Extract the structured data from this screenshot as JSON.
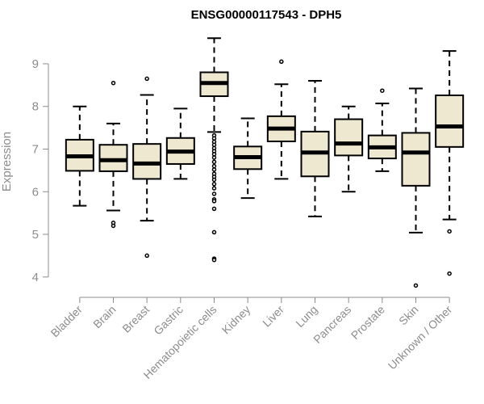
{
  "chart_data": {
    "type": "boxplot",
    "title": "ENSG00000117543 - DPH5",
    "xlabel": "",
    "ylabel": "Expression",
    "ylim": [
      3.75,
      9.7
    ],
    "yticks": [
      4,
      5,
      6,
      7,
      8,
      9
    ],
    "box_fill": "#efe8d0",
    "categories": [
      "Bladder",
      "Brain",
      "Breast",
      "Gastric",
      "Hematopoietic cells",
      "Kidney",
      "Liver",
      "Lung",
      "Pancreas",
      "Prostate",
      "Skin",
      "Unknown / Other"
    ],
    "boxes": [
      {
        "whisker_low": 5.67,
        "q1": 6.49,
        "median": 6.83,
        "q3": 7.22,
        "whisker_high": 8.0,
        "outliers": []
      },
      {
        "whisker_low": 5.56,
        "q1": 6.48,
        "median": 6.74,
        "q3": 7.1,
        "whisker_high": 7.6,
        "outliers": [
          8.55,
          5.27,
          5.2
        ]
      },
      {
        "whisker_low": 5.32,
        "q1": 6.3,
        "median": 6.66,
        "q3": 7.12,
        "whisker_high": 8.27,
        "outliers": [
          8.65,
          4.5
        ]
      },
      {
        "whisker_low": 6.3,
        "q1": 6.65,
        "median": 6.94,
        "q3": 7.26,
        "whisker_high": 7.95,
        "outliers": []
      },
      {
        "whisker_low": 7.4,
        "q1": 8.24,
        "median": 8.55,
        "q3": 8.8,
        "whisker_high": 9.6,
        "outliers": [
          7.32,
          7.25,
          7.17,
          7.1,
          7.02,
          6.95,
          6.88,
          6.8,
          6.7,
          6.6,
          6.52,
          6.42,
          6.35,
          6.28,
          6.18,
          6.08,
          5.95,
          5.82,
          5.78,
          5.6,
          5.05,
          4.43,
          4.4
        ]
      },
      {
        "whisker_low": 5.85,
        "q1": 6.53,
        "median": 6.81,
        "q3": 7.06,
        "whisker_high": 7.72,
        "outliers": []
      },
      {
        "whisker_low": 6.3,
        "q1": 7.18,
        "median": 7.48,
        "q3": 7.77,
        "whisker_high": 8.52,
        "outliers": [
          9.05
        ]
      },
      {
        "whisker_low": 5.42,
        "q1": 6.36,
        "median": 6.92,
        "q3": 7.41,
        "whisker_high": 8.6,
        "outliers": []
      },
      {
        "whisker_low": 6.0,
        "q1": 6.85,
        "median": 7.13,
        "q3": 7.7,
        "whisker_high": 8.0,
        "outliers": []
      },
      {
        "whisker_low": 6.48,
        "q1": 6.78,
        "median": 7.04,
        "q3": 7.32,
        "whisker_high": 8.07,
        "outliers": [
          8.37
        ]
      },
      {
        "whisker_low": 5.04,
        "q1": 6.14,
        "median": 6.92,
        "q3": 7.38,
        "whisker_high": 8.42,
        "outliers": [
          3.8
        ]
      },
      {
        "whisker_low": 5.35,
        "q1": 7.05,
        "median": 7.53,
        "q3": 8.26,
        "whisker_high": 9.3,
        "outliers": [
          5.07,
          4.08
        ]
      }
    ]
  }
}
